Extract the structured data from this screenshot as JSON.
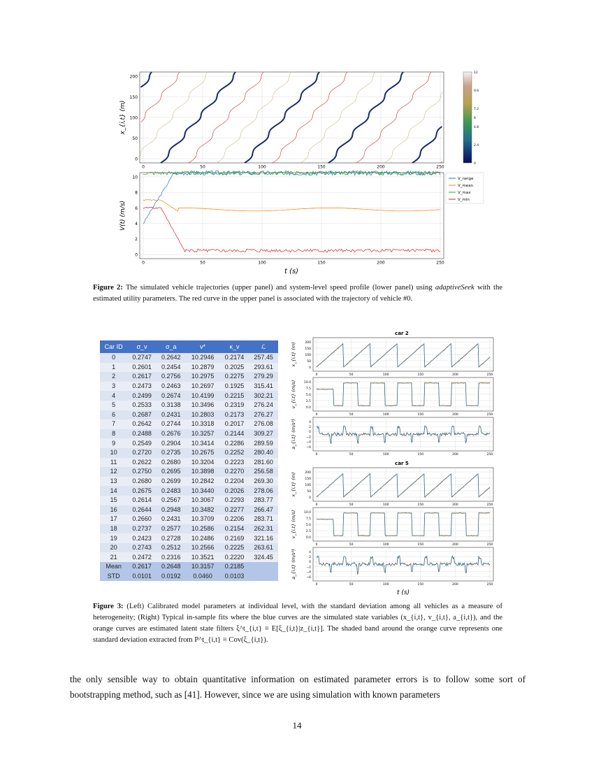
{
  "figure2": {
    "upper": {
      "ylabel": "x_{i,t} (m)",
      "yticks": [
        "0",
        "50",
        "100",
        "150",
        "200"
      ],
      "xticks": [
        "0",
        "50",
        "100",
        "150",
        "200",
        "250"
      ],
      "colorbar_ticks": [
        "0",
        "2.4",
        "4.8",
        "6",
        "7.2",
        "9.6",
        "12"
      ],
      "colormap": "gist_earth"
    },
    "lower": {
      "ylabel": "V(t) (m/s)",
      "xlabel": "t (s)",
      "yticks": [
        "0",
        "2",
        "4",
        "6",
        "8",
        "10"
      ],
      "xticks": [
        "0",
        "50",
        "100",
        "150",
        "200",
        "250"
      ],
      "legend": [
        {
          "name": "V_range",
          "color": "#1f77b4"
        },
        {
          "name": "V_mean",
          "color": "#ff7f0e"
        },
        {
          "name": "V_max",
          "color": "#2ca02c"
        },
        {
          "name": "V_min",
          "color": "#d62728"
        }
      ]
    },
    "caption_label": "Figure 2:",
    "caption_text": "The simulated vehicle trajectories (upper panel) and system-level speed profile (lower panel) using",
    "caption_italic": "adaptiveSeek",
    "caption_text2": "with the estimated utility parameters. The red curve in the upper panel is associated with the trajectory of vehicle #0."
  },
  "table": {
    "headers": [
      "Car ID",
      "σ_v",
      "σ_a",
      "v*",
      "κ_v",
      "ℒ"
    ],
    "rows": [
      [
        "0",
        "0.2747",
        "0.2642",
        "10.2946",
        "0.2174",
        "257.45"
      ],
      [
        "1",
        "0.2601",
        "0.2454",
        "10.2879",
        "0.2025",
        "293.61"
      ],
      [
        "2",
        "0.2617",
        "0.2756",
        "10.2975",
        "0.2275",
        "279.29"
      ],
      [
        "3",
        "0.2473",
        "0.2463",
        "10.2697",
        "0.1925",
        "315.41"
      ],
      [
        "4",
        "0.2499",
        "0.2674",
        "10.4199",
        "0.2215",
        "302.21"
      ],
      [
        "5",
        "0.2533",
        "0.3138",
        "10.3496",
        "0.2319",
        "276.24"
      ],
      [
        "6",
        "0.2687",
        "0.2431",
        "10.2803",
        "0.2173",
        "276.27"
      ],
      [
        "7",
        "0.2642",
        "0.2744",
        "10.3318",
        "0.2017",
        "276.08"
      ],
      [
        "8",
        "0.2488",
        "0.2676",
        "10.3257",
        "0.2144",
        "309.27"
      ],
      [
        "9",
        "0.2549",
        "0.2904",
        "10.3414",
        "0.2286",
        "289.59"
      ],
      [
        "10",
        "0.2720",
        "0.2735",
        "10.2675",
        "0.2252",
        "280.40"
      ],
      [
        "11",
        "0.2622",
        "0.2680",
        "10.3204",
        "0.2223",
        "281.60"
      ],
      [
        "12",
        "0.2750",
        "0.2695",
        "10.3898",
        "0.2270",
        "256.58"
      ],
      [
        "13",
        "0.2680",
        "0.2699",
        "10.2842",
        "0.2204",
        "269.30"
      ],
      [
        "14",
        "0.2675",
        "0.2483",
        "10.3440",
        "0.2026",
        "278.06"
      ],
      [
        "15",
        "0.2614",
        "0.2567",
        "10.3067",
        "0.2293",
        "283.77"
      ],
      [
        "16",
        "0.2644",
        "0.2948",
        "10.3482",
        "0.2277",
        "266.47"
      ],
      [
        "17",
        "0.2660",
        "0.2431",
        "10.3709",
        "0.2206",
        "283.71"
      ],
      [
        "18",
        "0.2737",
        "0.2577",
        "10.2586",
        "0.2154",
        "262.31"
      ],
      [
        "19",
        "0.2423",
        "0.2728",
        "10.2486",
        "0.2169",
        "321.16"
      ],
      [
        "20",
        "0.2743",
        "0.2512",
        "10.2566",
        "0.2225",
        "263.61"
      ],
      [
        "21",
        "0.2472",
        "0.2316",
        "10.3521",
        "0.2220",
        "324.45"
      ]
    ],
    "summary": [
      [
        "Mean",
        "0.2617",
        "0.2648",
        "10.3157",
        "0.2185",
        ""
      ],
      [
        "STD",
        "0.0101",
        "0.0192",
        "0.0460",
        "0.0103",
        ""
      ]
    ]
  },
  "fits": [
    {
      "title": "car 2",
      "panels": [
        {
          "ylabel": "x_{i,t} (m)",
          "yticks": [
            "0",
            "50",
            "100",
            "150",
            "200"
          ]
        },
        {
          "ylabel": "v_{i,t} (m/s)",
          "yticks": [
            "0.0",
            "2.5",
            "5.0",
            "7.5",
            "10.0"
          ]
        },
        {
          "ylabel": "a_{i,t} (m/s²)",
          "yticks": [
            "−6",
            "−4",
            "−2",
            "0",
            "2",
            "4"
          ]
        }
      ]
    },
    {
      "title": "car 5",
      "panels": [
        {
          "ylabel": "x_{i,t} (m)",
          "yticks": [
            "0",
            "50",
            "100",
            "150",
            "200"
          ]
        },
        {
          "ylabel": "v_{i,t} (m/s)",
          "yticks": [
            "0.0",
            "2.5",
            "5.0",
            "7.5",
            "10.0"
          ]
        },
        {
          "ylabel": "a_{i,t} (m/s²)",
          "yticks": [
            "−6",
            "−4",
            "−2",
            "0",
            "2",
            "4"
          ]
        }
      ]
    }
  ],
  "fits_xticks": [
    "0",
    "50",
    "100",
    "150",
    "200",
    "250"
  ],
  "fits_xlabel": "t (s)",
  "figure3": {
    "caption_label": "Figure 3:",
    "caption_text": "(Left) Calibrated model parameters at individual level, with the standard deviation among all vehicles as a measure of heterogeneity; (Right) Typical in-sample fits where the blue curves are the simulated state variables (x_{i,t}, v_{i,t}, a_{i,t}), and the orange curves are estimated latent state filters ξ^t_{i,t} ≡ E[ξ_{i,t}|z_{i,t}]. The shaded band around the orange curve represents one standard deviation extracted from P^t_{i,t} ≡ Cov(ξ_{i,t})."
  },
  "body_text": "the only sensible way to obtain quantitative information on estimated parameter errors is to follow some sort of bootstrapping method, such as [41]. However, since we are using simulation with known parameters",
  "page_number": "14"
}
